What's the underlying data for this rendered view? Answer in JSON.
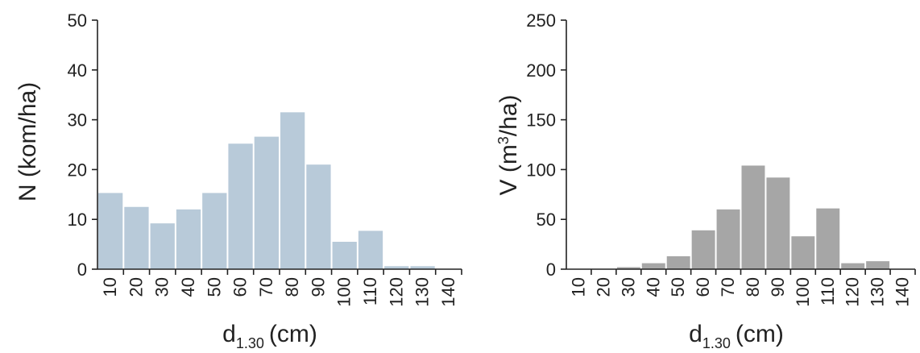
{
  "chart_data": [
    {
      "type": "bar",
      "categories": [
        "10",
        "20",
        "30",
        "40",
        "50",
        "60",
        "70",
        "80",
        "90",
        "100",
        "110",
        "120",
        "130",
        "140"
      ],
      "values": [
        15.3,
        12.5,
        9.2,
        12.0,
        15.3,
        25.2,
        26.6,
        31.5,
        21.0,
        5.5,
        7.7,
        0.6,
        0.6,
        0
      ],
      "ylim": [
        0,
        50
      ],
      "yticks": [
        0,
        10,
        20,
        30,
        40,
        50
      ],
      "ylabel": "N (kom/ha)",
      "xlabel": {
        "main": "d",
        "sub": "1.30",
        "unit": "(cm)"
      },
      "color": "#b8cad9"
    },
    {
      "type": "bar",
      "categories": [
        "10",
        "20",
        "30",
        "40",
        "50",
        "60",
        "70",
        "80",
        "90",
        "100",
        "110",
        "120",
        "130",
        "140"
      ],
      "values": [
        0,
        0,
        2,
        6,
        13,
        39,
        60,
        104,
        92,
        33,
        61,
        6,
        8,
        0
      ],
      "ylim": [
        0,
        250
      ],
      "yticks": [
        0,
        50,
        100,
        150,
        200,
        250
      ],
      "ylabel": {
        "pre": "V (m",
        "sup": "3",
        "post": "/ha)"
      },
      "xlabel": {
        "main": "d",
        "sub": "1.30",
        "unit": "(cm)"
      },
      "color": "#a6a6a6"
    }
  ]
}
